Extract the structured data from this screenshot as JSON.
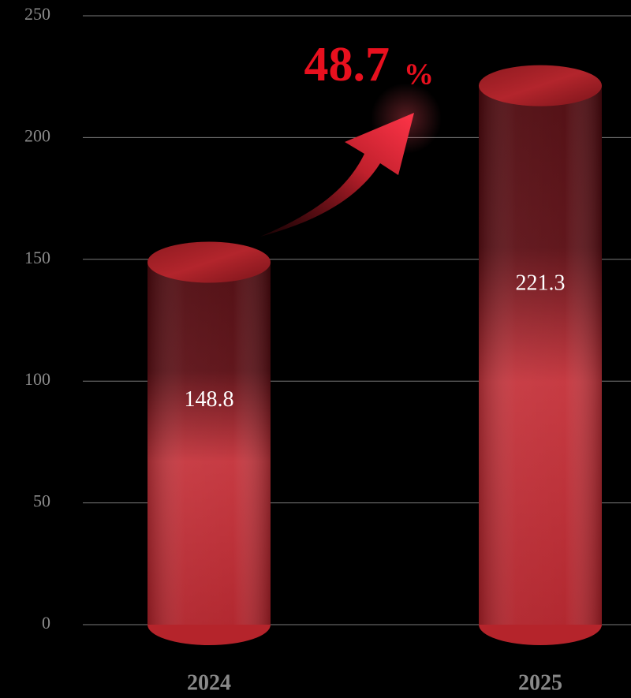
{
  "chart_data": {
    "type": "bar",
    "categories": [
      "2024",
      "2025"
    ],
    "values": [
      148.8,
      221.3
    ],
    "color": "#c8333b",
    "ylim": [
      0,
      250
    ],
    "yticks": [
      0,
      50,
      100,
      150,
      200,
      250
    ],
    "grid": true,
    "annotation": "48.7",
    "annotation_unit": "%"
  }
}
